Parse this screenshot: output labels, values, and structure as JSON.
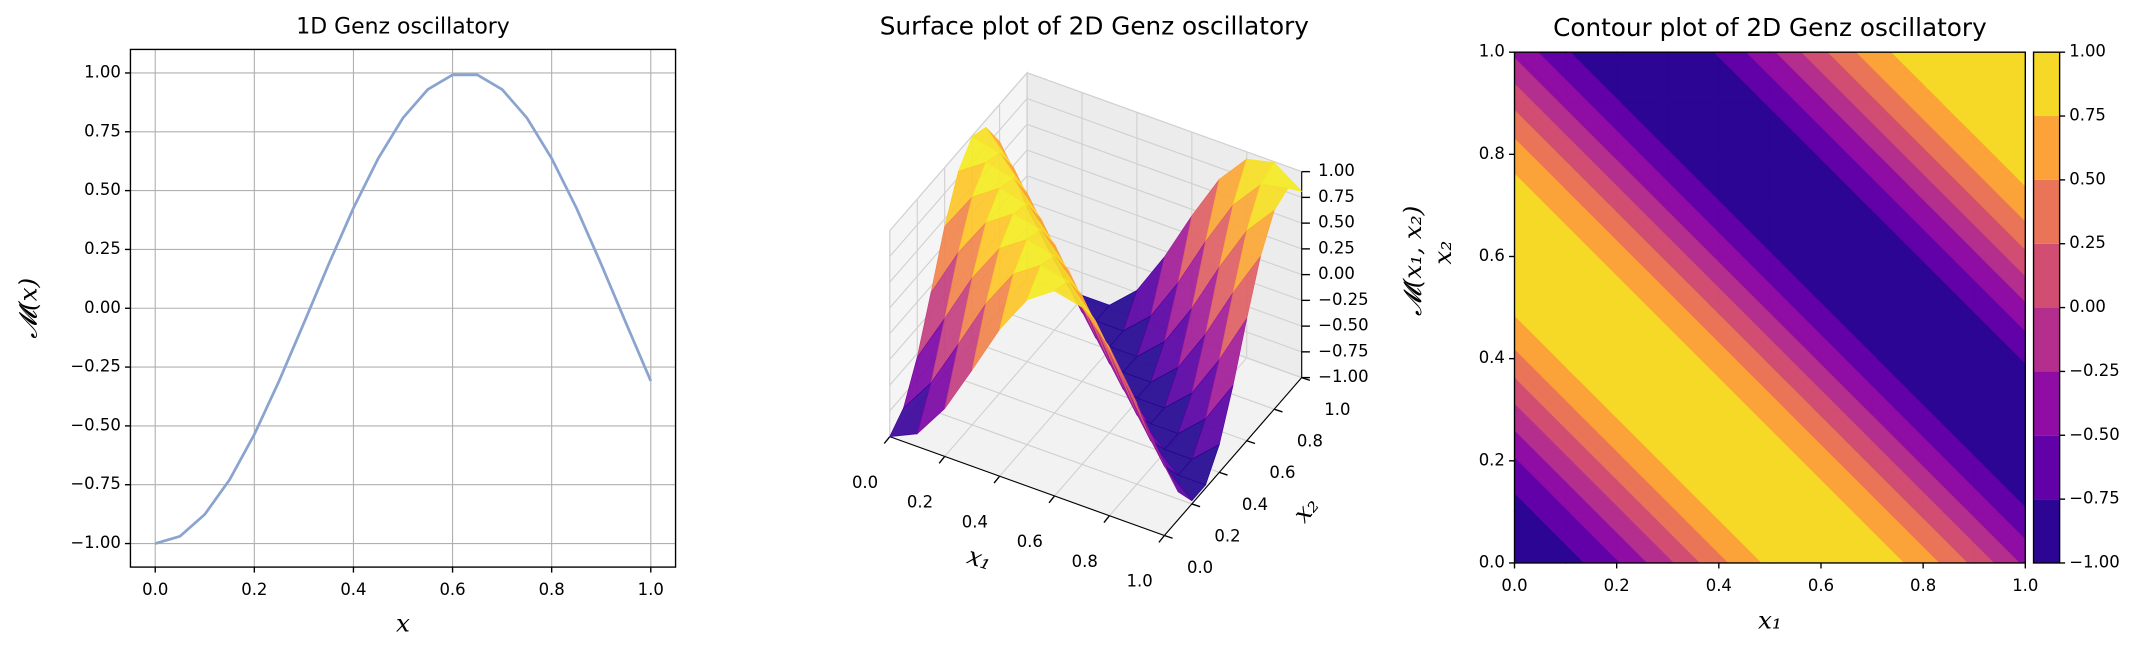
{
  "chart_data": [
    {
      "type": "line",
      "title": "1D Genz oscillatory",
      "xlabel": "x",
      "ylabel": "𝓜(x)",
      "x": [
        0,
        0.05,
        0.1,
        0.15,
        0.2,
        0.25,
        0.3,
        0.35,
        0.4,
        0.45,
        0.5,
        0.55,
        0.6,
        0.65,
        0.7,
        0.75,
        0.8,
        0.85,
        0.9,
        0.95,
        1
      ],
      "values": [
        -1,
        -0.969,
        -0.876,
        -0.729,
        -0.536,
        -0.309,
        -0.063,
        0.187,
        0.426,
        0.637,
        0.809,
        0.93,
        0.992,
        0.992,
        0.93,
        0.809,
        0.637,
        0.426,
        0.187,
        -0.063,
        -0.309
      ],
      "color": "#8aa4cf",
      "xlim": [
        -0.05,
        1.05
      ],
      "ylim": [
        -1.1,
        1.1
      ],
      "xticks": [
        {
          "value": 0,
          "label": "0.0"
        },
        {
          "value": 0.2,
          "label": "0.2"
        },
        {
          "value": 0.4,
          "label": "0.4"
        },
        {
          "value": 0.6,
          "label": "0.6"
        },
        {
          "value": 0.8,
          "label": "0.8"
        },
        {
          "value": 1,
          "label": "1.0"
        }
      ],
      "yticks": [
        {
          "value": -1,
          "label": "−1.00"
        },
        {
          "value": -0.75,
          "label": "−0.75"
        },
        {
          "value": -0.5,
          "label": "−0.50"
        },
        {
          "value": -0.25,
          "label": "−0.25"
        },
        {
          "value": 0,
          "label": "0.00"
        },
        {
          "value": 0.25,
          "label": "0.25"
        },
        {
          "value": 0.5,
          "label": "0.50"
        },
        {
          "value": 0.75,
          "label": "0.75"
        },
        {
          "value": 1,
          "label": "1.00"
        }
      ],
      "grid": true
    },
    {
      "type": "surface",
      "title": "Surface plot of 2D Genz oscillatory",
      "xlabel": "x₁",
      "ylabel": "x₂",
      "zlabel": "𝓜(x₁, x₂)",
      "x": [
        0,
        0.1,
        0.2,
        0.3,
        0.4,
        0.5,
        0.6,
        0.7,
        0.8,
        0.9,
        1
      ],
      "y": [
        0,
        0.1,
        0.2,
        0.3,
        0.4,
        0.5,
        0.6,
        0.7,
        0.8,
        0.9,
        1
      ],
      "z": [
        [
          -1,
          -0.876,
          -0.536,
          -0.063,
          0.426,
          0.809,
          0.992,
          0.93,
          0.637,
          0.187,
          -0.309
        ],
        [
          -0.876,
          -0.536,
          -0.063,
          0.426,
          0.809,
          0.992,
          0.93,
          0.637,
          0.187,
          -0.309,
          -0.729
        ],
        [
          -0.536,
          -0.063,
          0.426,
          0.809,
          0.992,
          0.93,
          0.637,
          0.187,
          -0.309,
          -0.729,
          -0.969
        ],
        [
          -0.063,
          0.426,
          0.809,
          0.992,
          0.93,
          0.637,
          0.187,
          -0.309,
          -0.729,
          -0.969,
          -0.969
        ],
        [
          0.426,
          0.809,
          0.992,
          0.93,
          0.637,
          0.187,
          -0.309,
          -0.729,
          -0.969,
          -0.969,
          -0.729
        ],
        [
          0.809,
          0.992,
          0.93,
          0.637,
          0.187,
          -0.309,
          -0.729,
          -0.969,
          -0.969,
          -0.729,
          -0.309
        ],
        [
          0.992,
          0.93,
          0.637,
          0.187,
          -0.309,
          -0.729,
          -0.969,
          -0.969,
          -0.729,
          -0.309,
          0.187
        ],
        [
          0.93,
          0.637,
          0.187,
          -0.309,
          -0.729,
          -0.969,
          -0.969,
          -0.729,
          -0.309,
          0.187,
          0.637
        ],
        [
          0.637,
          0.187,
          -0.309,
          -0.729,
          -0.969,
          -0.969,
          -0.729,
          -0.309,
          0.187,
          0.637,
          0.93
        ],
        [
          0.187,
          -0.309,
          -0.729,
          -0.969,
          -0.969,
          -0.729,
          -0.309,
          0.187,
          0.637,
          0.93,
          0.992
        ],
        [
          -0.309,
          -0.729,
          -0.969,
          -0.969,
          -0.729,
          -0.309,
          0.187,
          0.637,
          0.93,
          0.992,
          0.809
        ]
      ],
      "xlim": [
        0,
        1
      ],
      "ylim": [
        0,
        1
      ],
      "zlim": [
        -1,
        1
      ],
      "xticks": [
        {
          "value": 0,
          "label": "0.0"
        },
        {
          "value": 0.2,
          "label": "0.2"
        },
        {
          "value": 0.4,
          "label": "0.4"
        },
        {
          "value": 0.6,
          "label": "0.6"
        },
        {
          "value": 0.8,
          "label": "0.8"
        },
        {
          "value": 1,
          "label": "1.0"
        }
      ],
      "yticks": [
        {
          "value": 0,
          "label": "0.0"
        },
        {
          "value": 0.2,
          "label": "0.2"
        },
        {
          "value": 0.4,
          "label": "0.4"
        },
        {
          "value": 0.6,
          "label": "0.6"
        },
        {
          "value": 0.8,
          "label": "0.8"
        },
        {
          "value": 1,
          "label": "1.0"
        }
      ],
      "zticks": [
        {
          "value": -1,
          "label": "−1.00"
        },
        {
          "value": -0.75,
          "label": "−0.75"
        },
        {
          "value": -0.5,
          "label": "−0.50"
        },
        {
          "value": -0.25,
          "label": "−0.25"
        },
        {
          "value": 0,
          "label": "0.00"
        },
        {
          "value": 0.25,
          "label": "0.25"
        },
        {
          "value": 0.5,
          "label": "0.50"
        },
        {
          "value": 0.75,
          "label": "0.75"
        },
        {
          "value": 1,
          "label": "1.00"
        }
      ],
      "colormap": [
        "#0d0887",
        "#46039f",
        "#7201a8",
        "#9c179e",
        "#bd3786",
        "#d8576b",
        "#ed7953",
        "#fb9f3a",
        "#fdca26",
        "#f0f921"
      ]
    },
    {
      "type": "contour",
      "title": "Contour plot of 2D Genz oscillatory",
      "xlabel": "x₁",
      "ylabel": "x₂",
      "x": [
        0,
        0.1,
        0.2,
        0.3,
        0.4,
        0.5,
        0.6,
        0.7,
        0.8,
        0.9,
        1
      ],
      "y": [
        0,
        0.1,
        0.2,
        0.3,
        0.4,
        0.5,
        0.6,
        0.7,
        0.8,
        0.9,
        1
      ],
      "z": [
        [
          -1,
          -0.876,
          -0.536,
          -0.063,
          0.426,
          0.809,
          0.992,
          0.93,
          0.637,
          0.187,
          -0.309
        ],
        [
          -0.876,
          -0.536,
          -0.063,
          0.426,
          0.809,
          0.992,
          0.93,
          0.637,
          0.187,
          -0.309,
          -0.729
        ],
        [
          -0.536,
          -0.063,
          0.426,
          0.809,
          0.992,
          0.93,
          0.637,
          0.187,
          -0.309,
          -0.729,
          -0.969
        ],
        [
          -0.063,
          0.426,
          0.809,
          0.992,
          0.93,
          0.637,
          0.187,
          -0.309,
          -0.729,
          -0.969,
          -0.969
        ],
        [
          0.426,
          0.809,
          0.992,
          0.93,
          0.637,
          0.187,
          -0.309,
          -0.729,
          -0.969,
          -0.969,
          -0.729
        ],
        [
          0.809,
          0.992,
          0.93,
          0.637,
          0.187,
          -0.309,
          -0.729,
          -0.969,
          -0.969,
          -0.729,
          -0.309
        ],
        [
          0.992,
          0.93,
          0.637,
          0.187,
          -0.309,
          -0.729,
          -0.969,
          -0.969,
          -0.729,
          -0.309,
          0.187
        ],
        [
          0.93,
          0.637,
          0.187,
          -0.309,
          -0.729,
          -0.969,
          -0.969,
          -0.729,
          -0.309,
          0.187,
          0.637
        ],
        [
          0.637,
          0.187,
          -0.309,
          -0.729,
          -0.969,
          -0.969,
          -0.729,
          -0.309,
          0.187,
          0.637,
          0.93
        ],
        [
          0.187,
          -0.309,
          -0.729,
          -0.969,
          -0.969,
          -0.729,
          -0.309,
          0.187,
          0.637,
          0.93,
          0.992
        ],
        [
          -0.309,
          -0.729,
          -0.969,
          -0.969,
          -0.729,
          -0.309,
          0.187,
          0.637,
          0.93,
          0.992,
          0.809
        ]
      ],
      "levels": [
        {
          "value": -1,
          "label": "−1.00"
        },
        {
          "value": -0.75,
          "label": "−0.75"
        },
        {
          "value": -0.5,
          "label": "−0.50"
        },
        {
          "value": -0.25,
          "label": "−0.25"
        },
        {
          "value": 0,
          "label": "0.00"
        },
        {
          "value": 0.25,
          "label": "0.25"
        },
        {
          "value": 0.5,
          "label": "0.50"
        },
        {
          "value": 0.75,
          "label": "0.75"
        },
        {
          "value": 1,
          "label": "1.00"
        }
      ],
      "colors": [
        "#2d0594",
        "#6201a8",
        "#8f0da4",
        "#b42e8d",
        "#d14d71",
        "#ea7457",
        "#fba238",
        "#f6d927"
      ],
      "xlim": [
        0,
        1
      ],
      "ylim": [
        0,
        1
      ],
      "xticks": [
        {
          "value": 0,
          "label": "0.0"
        },
        {
          "value": 0.2,
          "label": "0.2"
        },
        {
          "value": 0.4,
          "label": "0.4"
        },
        {
          "value": 0.6,
          "label": "0.6"
        },
        {
          "value": 0.8,
          "label": "0.8"
        },
        {
          "value": 1,
          "label": "1.0"
        }
      ],
      "yticks": [
        {
          "value": 0,
          "label": "0.0"
        },
        {
          "value": 0.2,
          "label": "0.2"
        },
        {
          "value": 0.4,
          "label": "0.4"
        },
        {
          "value": 0.6,
          "label": "0.6"
        },
        {
          "value": 0.8,
          "label": "0.8"
        },
        {
          "value": 1,
          "label": "1.0"
        }
      ]
    }
  ]
}
